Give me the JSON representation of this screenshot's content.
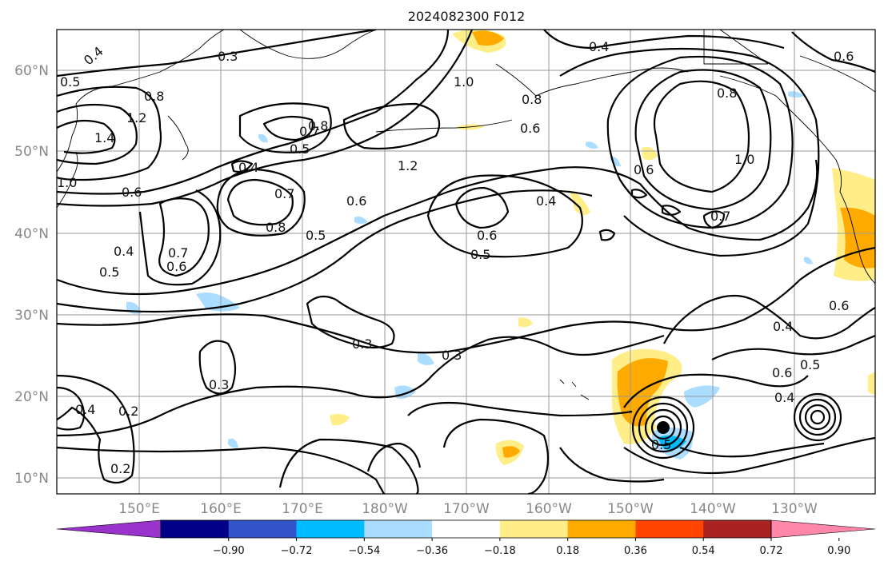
{
  "title": "2024082300 F012",
  "lat_labels": [
    "60°N",
    "50°N",
    "40°N",
    "30°N",
    "20°N",
    "10°N"
  ],
  "lon_labels": [
    "150°E",
    "160°E",
    "170°E",
    "180°W",
    "170°W",
    "160°W",
    "150°W",
    "140°W",
    "130°W"
  ],
  "colorbar": {
    "ticks": [
      "−0.90",
      "−0.72",
      "−0.54",
      "−0.36",
      "−0.18",
      "0.18",
      "0.36",
      "0.54",
      "0.72",
      "0.90"
    ],
    "colors": [
      "#9933cc",
      "#000088",
      "#3355cc",
      "#00bbff",
      "#aaddff",
      "#ffffff",
      "#ffee88",
      "#ffaa00",
      "#ff4400",
      "#aa2222",
      "#ff88aa"
    ]
  },
  "contour_labels": [
    "0.4",
    "0.3",
    "0.5",
    "0.8",
    "1.2",
    "1.4",
    "1.0",
    "0.6",
    "0.7",
    "0.8",
    "0.5",
    "0.4",
    "0.7",
    "0.8",
    "0.6",
    "0.5",
    "0.6",
    "0.5",
    "0.6",
    "0.4",
    "0.7",
    "1.0",
    "1.2",
    "0.8",
    "0.6",
    "0.7",
    "0.8",
    "1.0",
    "0.4",
    "0.5",
    "0.4",
    "0.6",
    "0.3",
    "0.3",
    "0.3",
    "0.2",
    "0.2",
    "0.4",
    "0.6",
    "0.5",
    "0.6",
    "0.4",
    "0.5",
    "0.4",
    "0.6"
  ]
}
